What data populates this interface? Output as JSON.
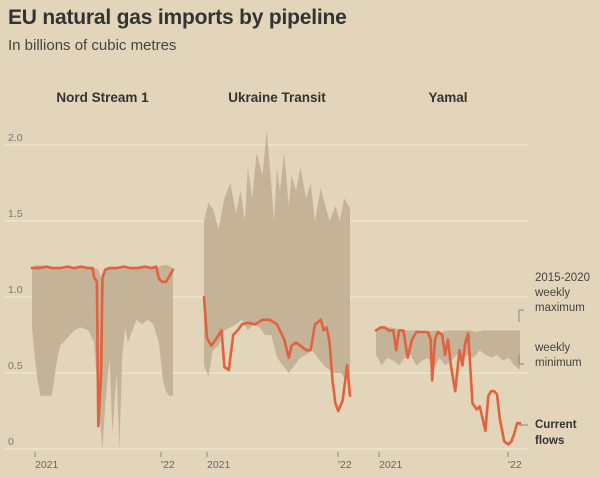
{
  "title": "EU natural gas imports by pipeline",
  "subtitle": "In billions of cubic metres",
  "colors": {
    "background": "#e3d5b9",
    "range_band": "#c4b397",
    "current_line": "#e0623f",
    "gridline": "#f3ead8",
    "text": "#333333"
  },
  "legend": {
    "max_label_line1": "2015-2020",
    "max_label_line2": "weekly",
    "max_label_line3": "maximum",
    "min_label_line1": "weekly",
    "min_label_line2": "minimum",
    "current_label_line1": "Current",
    "current_label_line2": "flows"
  },
  "chart_data": [
    {
      "type": "area",
      "title": "Nord Stream 1",
      "xticks": [
        "2021",
        "'22"
      ],
      "ylim": [
        0,
        2.0
      ],
      "yticks": [
        "0",
        "0.5",
        "1.0",
        "1.5",
        "2.0"
      ],
      "grid": true,
      "series": [
        {
          "name": "2015-2020 weekly maximum",
          "x": [
            0,
            0.02,
            0.05,
            0.1,
            0.2,
            0.3,
            0.4,
            0.45,
            0.47,
            0.49,
            0.5,
            0.53,
            0.55,
            0.6,
            0.65,
            0.7,
            0.75,
            0.8,
            0.85,
            0.9,
            0.93,
            0.96,
            1
          ],
          "values": [
            1.19,
            1.21,
            1.21,
            1.2,
            1.2,
            1.2,
            1.2,
            1.19,
            1.18,
            1.12,
            1.1,
            1.19,
            1.2,
            1.2,
            1.19,
            1.2,
            1.2,
            1.19,
            1.2,
            1.2,
            1.21,
            1.21,
            1.19
          ]
        },
        {
          "name": "2015-2020 weekly minimum",
          "x": [
            0,
            0.02,
            0.04,
            0.06,
            0.1,
            0.14,
            0.18,
            0.2,
            0.24,
            0.27,
            0.3,
            0.35,
            0.4,
            0.44,
            0.46,
            0.48,
            0.5,
            0.52,
            0.55,
            0.57,
            0.6,
            0.62,
            0.64,
            0.66,
            0.68,
            0.72,
            0.74,
            0.78,
            0.82,
            0.86,
            0.9,
            0.93,
            0.95,
            0.97,
            1
          ],
          "values": [
            0.8,
            0.6,
            0.45,
            0.35,
            0.35,
            0.35,
            0.6,
            0.68,
            0.72,
            0.75,
            0.78,
            0.8,
            0.78,
            0.7,
            0.45,
            0.2,
            0.0,
            0.3,
            0.6,
            0.1,
            0.5,
            0.0,
            0.6,
            0.8,
            0.7,
            0.8,
            0.85,
            0.82,
            0.85,
            0.82,
            0.7,
            0.45,
            0.38,
            0.35,
            0.35
          ]
        },
        {
          "name": "Current flows",
          "x": [
            0,
            0.05,
            0.1,
            0.15,
            0.2,
            0.25,
            0.3,
            0.35,
            0.4,
            0.43,
            0.44,
            0.46,
            0.47,
            0.49,
            0.5,
            0.52,
            0.55,
            0.6,
            0.65,
            0.7,
            0.75,
            0.8,
            0.85,
            0.88,
            0.9,
            0.92,
            0.95,
            0.97,
            1
          ],
          "values": [
            1.19,
            1.19,
            1.2,
            1.19,
            1.19,
            1.2,
            1.19,
            1.2,
            1.19,
            1.19,
            1.13,
            1.1,
            0.15,
            0.5,
            1.13,
            1.18,
            1.19,
            1.19,
            1.2,
            1.19,
            1.19,
            1.2,
            1.19,
            1.2,
            1.12,
            1.1,
            1.1,
            1.13,
            1.18
          ]
        }
      ]
    },
    {
      "type": "area",
      "title": "Ukraine Transit",
      "xticks": [
        "2021",
        "'22"
      ],
      "ylim": [
        0,
        2.0
      ],
      "yticks": [
        "0",
        "0.5",
        "1.0",
        "1.5",
        "2.0"
      ],
      "grid": true,
      "series": [
        {
          "name": "2015-2020 weekly maximum",
          "x": [
            0,
            0.03,
            0.06,
            0.1,
            0.14,
            0.18,
            0.22,
            0.25,
            0.28,
            0.3,
            0.33,
            0.36,
            0.4,
            0.43,
            0.46,
            0.48,
            0.5,
            0.52,
            0.55,
            0.58,
            0.6,
            0.63,
            0.66,
            0.7,
            0.73,
            0.76,
            0.8,
            0.83,
            0.86,
            0.9,
            0.93,
            0.96,
            1
          ],
          "values": [
            1.5,
            1.62,
            1.58,
            1.45,
            1.65,
            1.75,
            1.55,
            1.7,
            1.5,
            1.85,
            1.65,
            1.95,
            1.8,
            2.1,
            1.75,
            1.5,
            1.85,
            1.7,
            1.95,
            1.6,
            1.8,
            1.7,
            1.85,
            1.65,
            1.75,
            1.5,
            1.72,
            1.6,
            1.5,
            1.6,
            1.5,
            1.65,
            1.58
          ]
        },
        {
          "name": "2015-2020 weekly minimum",
          "x": [
            0,
            0.03,
            0.06,
            0.1,
            0.14,
            0.18,
            0.22,
            0.26,
            0.3,
            0.34,
            0.38,
            0.42,
            0.46,
            0.5,
            0.54,
            0.58,
            0.62,
            0.66,
            0.7,
            0.74,
            0.78,
            0.82,
            0.86,
            0.9,
            0.94,
            0.97,
            1
          ],
          "values": [
            0.55,
            0.48,
            0.65,
            0.68,
            0.78,
            0.8,
            0.82,
            0.85,
            0.78,
            0.82,
            0.8,
            0.75,
            0.75,
            0.6,
            0.55,
            0.5,
            0.55,
            0.6,
            0.62,
            0.65,
            0.6,
            0.55,
            0.52,
            0.5,
            0.5,
            0.45,
            0.48
          ]
        },
        {
          "name": "Current flows",
          "x": [
            0,
            0.02,
            0.05,
            0.08,
            0.12,
            0.14,
            0.17,
            0.2,
            0.23,
            0.26,
            0.3,
            0.35,
            0.4,
            0.45,
            0.5,
            0.55,
            0.58,
            0.6,
            0.63,
            0.66,
            0.7,
            0.73,
            0.76,
            0.8,
            0.82,
            0.84,
            0.86,
            0.88,
            0.9,
            0.92,
            0.95,
            0.98,
            1
          ],
          "values": [
            1.0,
            0.73,
            0.68,
            0.72,
            0.78,
            0.54,
            0.52,
            0.75,
            0.78,
            0.82,
            0.83,
            0.82,
            0.85,
            0.85,
            0.82,
            0.72,
            0.6,
            0.68,
            0.7,
            0.68,
            0.65,
            0.65,
            0.82,
            0.85,
            0.78,
            0.8,
            0.7,
            0.45,
            0.3,
            0.25,
            0.32,
            0.55,
            0.35
          ]
        }
      ]
    },
    {
      "type": "area",
      "title": "Yamal",
      "xticks": [
        "2021",
        "'22"
      ],
      "ylim": [
        0,
        2.0
      ],
      "yticks": [
        "0",
        "0.5",
        "1.0",
        "1.5",
        "2.0"
      ],
      "grid": true,
      "series": [
        {
          "name": "2015-2020 weekly maximum",
          "x": [
            0,
            0.05,
            0.1,
            0.15,
            0.2,
            0.25,
            0.3,
            0.35,
            0.4,
            0.45,
            0.5,
            0.55,
            0.6,
            0.65,
            0.7,
            0.75,
            0.8,
            0.85,
            0.9,
            0.95,
            1
          ],
          "values": [
            0.78,
            0.8,
            0.8,
            0.79,
            0.78,
            0.78,
            0.78,
            0.77,
            0.78,
            0.77,
            0.78,
            0.78,
            0.78,
            0.78,
            0.77,
            0.78,
            0.78,
            0.78,
            0.78,
            0.78,
            0.78
          ]
        },
        {
          "name": "2015-2020 weekly minimum",
          "x": [
            0,
            0.04,
            0.08,
            0.12,
            0.16,
            0.2,
            0.24,
            0.28,
            0.32,
            0.36,
            0.4,
            0.44,
            0.48,
            0.52,
            0.56,
            0.6,
            0.64,
            0.68,
            0.72,
            0.76,
            0.8,
            0.84,
            0.88,
            0.92,
            0.96,
            1
          ],
          "values": [
            0.62,
            0.55,
            0.6,
            0.58,
            0.55,
            0.6,
            0.62,
            0.55,
            0.58,
            0.6,
            0.52,
            0.6,
            0.55,
            0.58,
            0.62,
            0.6,
            0.62,
            0.6,
            0.65,
            0.62,
            0.6,
            0.62,
            0.58,
            0.6,
            0.55,
            0.52
          ]
        },
        {
          "name": "Current flows",
          "x": [
            0,
            0.03,
            0.06,
            0.09,
            0.12,
            0.14,
            0.16,
            0.19,
            0.22,
            0.25,
            0.28,
            0.3,
            0.33,
            0.36,
            0.38,
            0.39,
            0.41,
            0.43,
            0.46,
            0.48,
            0.5,
            0.52,
            0.55,
            0.58,
            0.6,
            0.62,
            0.64,
            0.67,
            0.7,
            0.72,
            0.74,
            0.76,
            0.78,
            0.8,
            0.82,
            0.84,
            0.86,
            0.89,
            0.92,
            0.94,
            0.96,
            0.98,
            1
          ],
          "values": [
            0.78,
            0.8,
            0.8,
            0.78,
            0.78,
            0.65,
            0.78,
            0.78,
            0.6,
            0.72,
            0.77,
            0.77,
            0.77,
            0.77,
            0.72,
            0.45,
            0.72,
            0.77,
            0.75,
            0.62,
            0.72,
            0.55,
            0.38,
            0.65,
            0.55,
            0.7,
            0.76,
            0.3,
            0.26,
            0.28,
            0.2,
            0.12,
            0.35,
            0.38,
            0.38,
            0.36,
            0.2,
            0.05,
            0.03,
            0.05,
            0.1,
            0.17,
            0.17
          ]
        }
      ]
    }
  ]
}
